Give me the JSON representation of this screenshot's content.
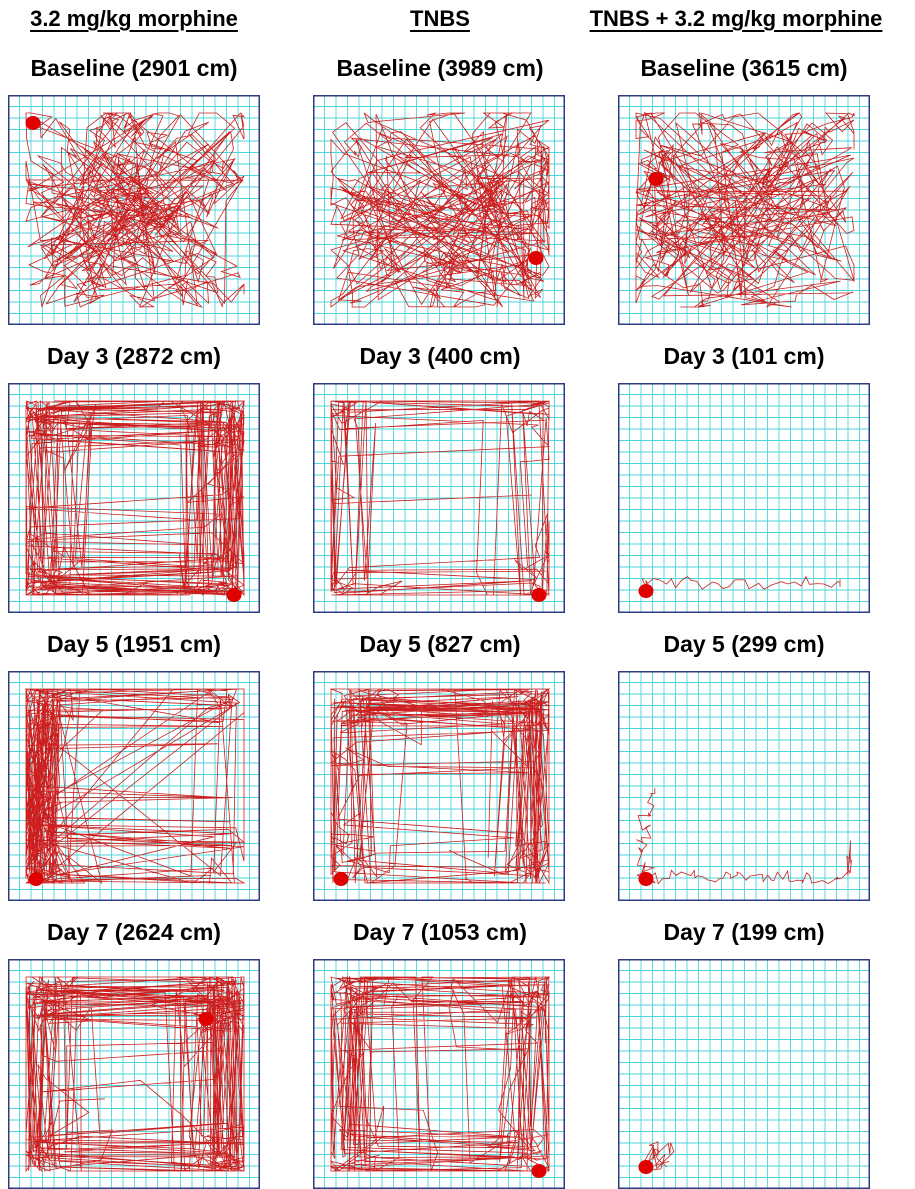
{
  "column_headers": [
    "3.2 mg/kg morphine",
    "TNBS",
    "TNBS + 3.2 mg/kg morphine"
  ],
  "panels": [
    [
      {
        "label": "Baseline (2901 cm)",
        "distance_cm": 2901,
        "start": "top-left",
        "pattern": "dense"
      },
      {
        "label": "Day 3 (2872 cm)",
        "distance_cm": 2872,
        "start": "bottom-right",
        "pattern": "perimeter-dense"
      },
      {
        "label": "Day 5 (1951 cm)",
        "distance_cm": 1951,
        "start": "bottom-left",
        "pattern": "perimeter-left"
      },
      {
        "label": "Day 7 (2624 cm)",
        "distance_cm": 2624,
        "start": "top-right",
        "pattern": "perimeter-dense"
      }
    ],
    [
      {
        "label": "Baseline (3989 cm)",
        "distance_cm": 3989,
        "start": "right",
        "pattern": "dense"
      },
      {
        "label": "Day 3 (400 cm)",
        "distance_cm": 400,
        "start": "bottom-right",
        "pattern": "perimeter-sparse"
      },
      {
        "label": "Day 5 (827 cm)",
        "distance_cm": 827,
        "start": "bottom-left",
        "pattern": "perimeter"
      },
      {
        "label": "Day 7 (1053 cm)",
        "distance_cm": 1053,
        "start": "bottom-right",
        "pattern": "perimeter"
      }
    ],
    [
      {
        "label": "Baseline (3615 cm)",
        "distance_cm": 3615,
        "start": "left",
        "pattern": "dense"
      },
      {
        "label": "Day 3 (101 cm)",
        "distance_cm": 101,
        "start": "bottom-left",
        "pattern": "bottom-edge"
      },
      {
        "label": "Day 5 (299 cm)",
        "distance_cm": 299,
        "start": "bottom-left",
        "pattern": "corner-L"
      },
      {
        "label": "Day 7 (199 cm)",
        "distance_cm": 199,
        "start": "bottom-left",
        "pattern": "corner-tiny"
      }
    ]
  ],
  "colors": {
    "grid": "#4ed6dc",
    "border": "#2c3d80",
    "track": "#cc1f1f",
    "marker": "#e00000"
  }
}
